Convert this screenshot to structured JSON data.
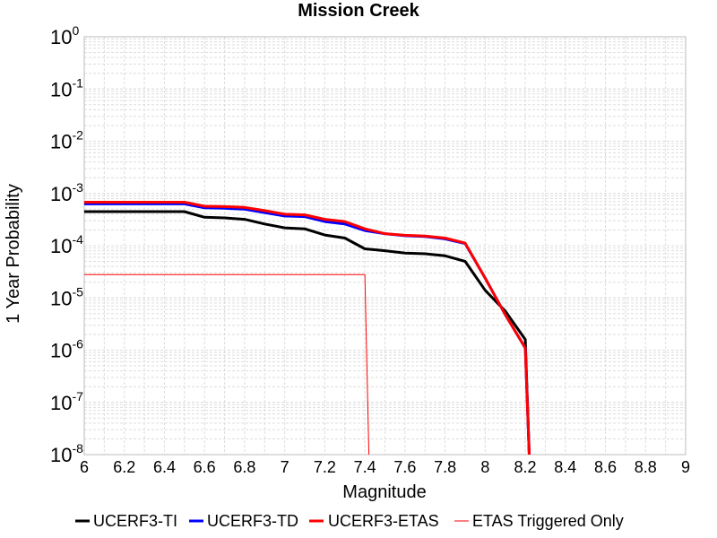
{
  "chart_data": {
    "type": "line",
    "title": "Mission Creek",
    "xlabel": "Magnitude",
    "ylabel": "1 Year Probability",
    "xlim": [
      6,
      9
    ],
    "ylim": [
      1e-08,
      1
    ],
    "yscale": "log",
    "grid": true,
    "legend_position": "bottom",
    "x_ticks": [
      "6",
      "6.2",
      "6.4",
      "6.6",
      "6.8",
      "7",
      "7.2",
      "7.4",
      "7.6",
      "7.8",
      "8",
      "8.2",
      "8.4",
      "8.6",
      "8.8",
      "9"
    ],
    "y_ticks": [
      {
        "base": "10",
        "exp": "-8",
        "value": 1e-08
      },
      {
        "base": "10",
        "exp": "-7",
        "value": 1e-07
      },
      {
        "base": "10",
        "exp": "-6",
        "value": 1e-06
      },
      {
        "base": "10",
        "exp": "-5",
        "value": 1e-05
      },
      {
        "base": "10",
        "exp": "-4",
        "value": 0.0001
      },
      {
        "base": "10",
        "exp": "-3",
        "value": 0.001
      },
      {
        "base": "10",
        "exp": "-2",
        "value": 0.01
      },
      {
        "base": "10",
        "exp": "-1",
        "value": 0.1
      },
      {
        "base": "10",
        "exp": "0",
        "value": 1
      }
    ],
    "series": [
      {
        "name": "UCERF3-TI",
        "color": "#000000",
        "line_width": 3,
        "x": [
          6.0,
          6.1,
          6.2,
          6.3,
          6.4,
          6.5,
          6.6,
          6.7,
          6.8,
          6.9,
          7.0,
          7.1,
          7.2,
          7.3,
          7.4,
          7.5,
          7.6,
          7.7,
          7.8,
          7.9,
          8.0,
          8.1,
          8.2,
          8.22
        ],
        "y": [
          0.00045,
          0.00045,
          0.00045,
          0.00045,
          0.00045,
          0.00045,
          0.00035,
          0.00034,
          0.00032,
          0.00026,
          0.00022,
          0.00021,
          0.00016,
          0.00014,
          8.7e-05,
          8e-05,
          7.2e-05,
          7e-05,
          6.4e-05,
          5e-05,
          1.4e-05,
          5.6e-06,
          1.6e-06,
          1e-08
        ]
      },
      {
        "name": "UCERF3-TD",
        "color": "#0000ff",
        "line_width": 3,
        "x": [
          6.0,
          6.1,
          6.2,
          6.3,
          6.4,
          6.5,
          6.6,
          6.7,
          6.8,
          6.9,
          7.0,
          7.1,
          7.2,
          7.3,
          7.4,
          7.5,
          7.6,
          7.7,
          7.8,
          7.9,
          8.0,
          8.1,
          8.2,
          8.22
        ],
        "y": [
          0.00063,
          0.00063,
          0.00063,
          0.00063,
          0.00063,
          0.00063,
          0.00053,
          0.00052,
          0.0005,
          0.00043,
          0.00037,
          0.00036,
          0.00029,
          0.00026,
          0.000195,
          0.00017,
          0.000155,
          0.00015,
          0.000135,
          0.00011,
          2.4e-05,
          4.8e-06,
          1.1e-06,
          1e-08
        ]
      },
      {
        "name": "UCERF3-ETAS",
        "color": "#ff0000",
        "line_width": 3,
        "x": [
          6.0,
          6.1,
          6.2,
          6.3,
          6.4,
          6.5,
          6.6,
          6.7,
          6.8,
          6.9,
          7.0,
          7.1,
          7.2,
          7.3,
          7.4,
          7.5,
          7.6,
          7.7,
          7.8,
          7.9,
          8.0,
          8.1,
          8.2,
          8.22
        ],
        "y": [
          0.00068,
          0.00068,
          0.00068,
          0.00068,
          0.00068,
          0.00068,
          0.00057,
          0.00056,
          0.00054,
          0.00047,
          0.0004,
          0.00039,
          0.00032,
          0.00029,
          0.00021,
          0.00017,
          0.000158,
          0.000153,
          0.00014,
          0.000112,
          2.4e-05,
          4.8e-06,
          1.1e-06,
          1e-08
        ]
      },
      {
        "name": "ETAS Triggered Only",
        "color": "#ff0000",
        "line_width": 1,
        "x": [
          6.0,
          7.4,
          7.42
        ],
        "y": [
          2.8e-05,
          2.8e-05,
          1e-08
        ]
      }
    ]
  }
}
